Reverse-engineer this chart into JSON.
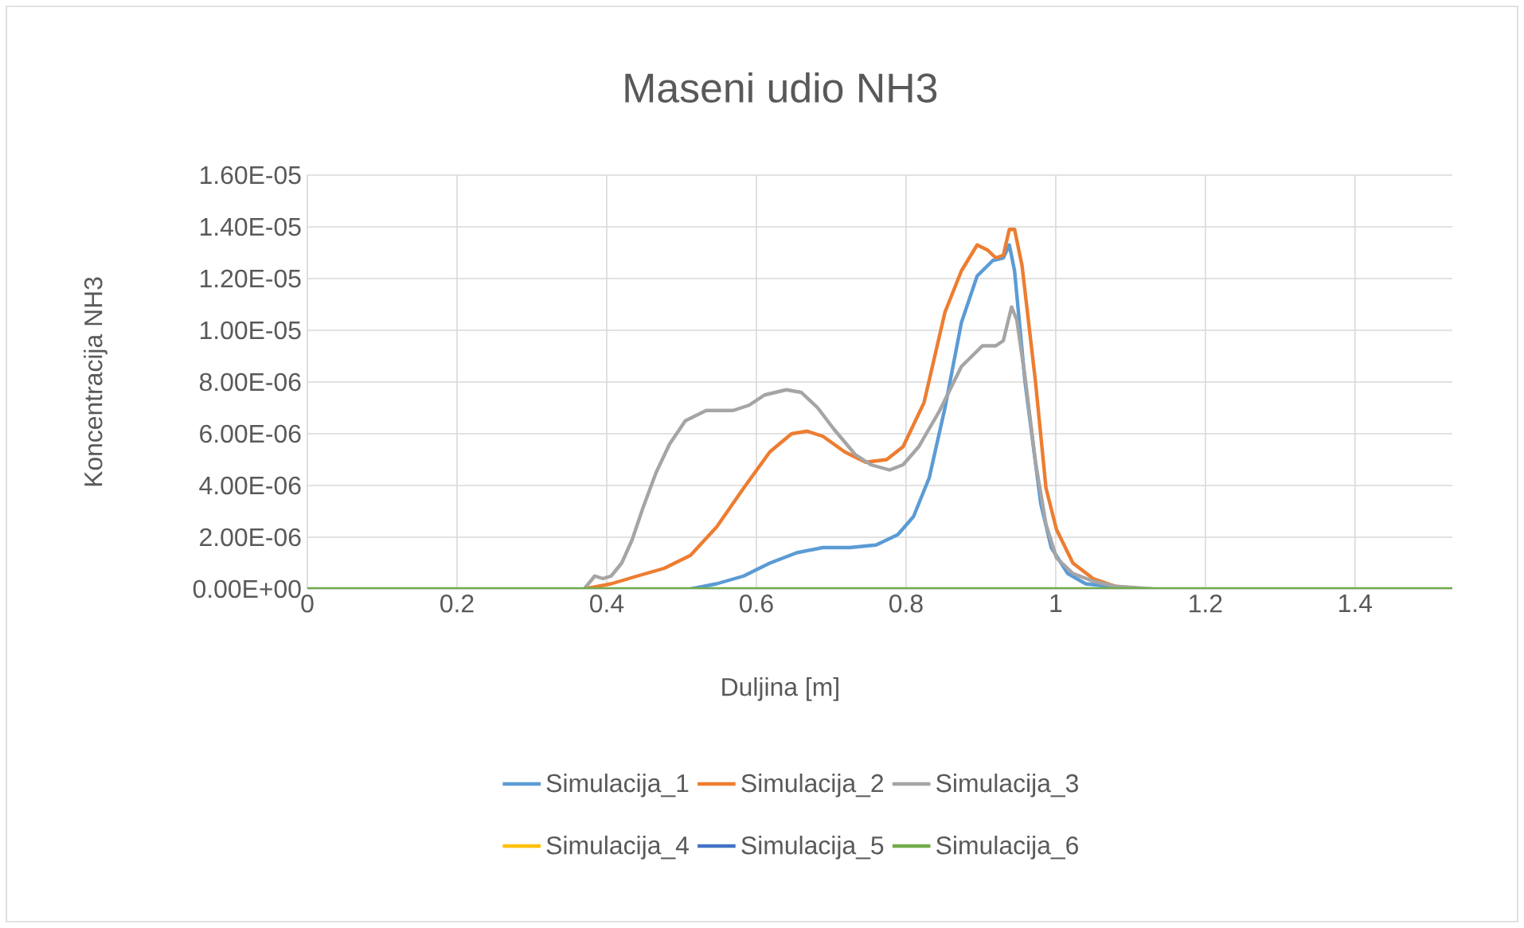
{
  "chart_data": {
    "type": "line",
    "title": "Maseni udio NH3",
    "xlabel": "Duljina [m]",
    "ylabel": "Koncentracija NH3",
    "xlim": [
      0,
      1.53
    ],
    "xticks": [
      0,
      0.2,
      0.4,
      0.6,
      0.8,
      1,
      1.2,
      1.4
    ],
    "ylim": [
      0,
      1.6e-05
    ],
    "yticks": [
      {
        "value": 0,
        "label": "0.00E+00"
      },
      {
        "value": 2e-06,
        "label": "2.00E-06"
      },
      {
        "value": 4e-06,
        "label": "4.00E-06"
      },
      {
        "value": 6e-06,
        "label": "6.00E-06"
      },
      {
        "value": 8e-06,
        "label": "8.00E-06"
      },
      {
        "value": 1e-05,
        "label": "1.00E-05"
      },
      {
        "value": 1.2e-05,
        "label": "1.20E-05"
      },
      {
        "value": 1.4e-05,
        "label": "1.40E-05"
      },
      {
        "value": 1.6e-05,
        "label": "1.60E-05"
      }
    ],
    "grid": true,
    "legend": "bottom",
    "marker": "none",
    "line_style": "solid",
    "series": [
      {
        "name": "Simulacija_1",
        "color": "#5b9bd5",
        "x": [
          0.512,
          0.547,
          0.583,
          0.618,
          0.654,
          0.689,
          0.725,
          0.76,
          0.789,
          0.81,
          0.831,
          0.852,
          0.874,
          0.895,
          0.916,
          0.93,
          0.938,
          0.945,
          0.959,
          0.98,
          0.994,
          1.016,
          1.04,
          1.07,
          1.1
        ],
        "values": [
          0,
          2e-07,
          5e-07,
          1e-06,
          1.4e-06,
          1.6e-06,
          1.6e-06,
          1.7e-06,
          2.1e-06,
          2.8e-06,
          4.3e-06,
          7e-06,
          1.03e-05,
          1.21e-05,
          1.27e-05,
          1.28e-05,
          1.33e-05,
          1.23e-05,
          8e-06,
          3.3e-06,
          1.6e-06,
          6e-07,
          2e-07,
          1e-07,
          0
        ]
      },
      {
        "name": "Simulacija_2",
        "color": "#ed7d31",
        "x": [
          0.37,
          0.406,
          0.441,
          0.477,
          0.512,
          0.547,
          0.583,
          0.618,
          0.647,
          0.668,
          0.689,
          0.718,
          0.746,
          0.774,
          0.796,
          0.824,
          0.852,
          0.874,
          0.895,
          0.909,
          0.92,
          0.93,
          0.938,
          0.945,
          0.955,
          0.973,
          0.987,
          1.001,
          1.023,
          1.05,
          1.08,
          1.12
        ],
        "values": [
          0,
          2e-07,
          5e-07,
          8e-07,
          1.3e-06,
          2.4e-06,
          3.9e-06,
          5.3e-06,
          6e-06,
          6.1e-06,
          5.9e-06,
          5.3e-06,
          4.9e-06,
          5e-06,
          5.5e-06,
          7.2e-06,
          1.07e-05,
          1.23e-05,
          1.33e-05,
          1.31e-05,
          1.28e-05,
          1.29e-05,
          1.39e-05,
          1.39e-05,
          1.25e-05,
          8e-06,
          3.9e-06,
          2.3e-06,
          1e-06,
          4e-07,
          1e-07,
          0
        ]
      },
      {
        "name": "Simulacija_3",
        "color": "#a5a5a5",
        "x": [
          0.37,
          0.384,
          0.395,
          0.406,
          0.42,
          0.434,
          0.448,
          0.466,
          0.484,
          0.505,
          0.533,
          0.569,
          0.59,
          0.611,
          0.64,
          0.66,
          0.682,
          0.703,
          0.732,
          0.753,
          0.778,
          0.796,
          0.817,
          0.845,
          0.874,
          0.902,
          0.92,
          0.93,
          0.941,
          0.948,
          0.959,
          0.973,
          0.987,
          1.001,
          1.023,
          1.05,
          1.08,
          1.13
        ],
        "values": [
          0,
          5e-07,
          4e-07,
          5e-07,
          1e-06,
          1.9e-06,
          3.1e-06,
          4.5e-06,
          5.6e-06,
          6.5e-06,
          6.9e-06,
          6.9e-06,
          7.1e-06,
          7.5e-06,
          7.7e-06,
          7.6e-06,
          7e-06,
          6.2e-06,
          5.2e-06,
          4.8e-06,
          4.6e-06,
          4.8e-06,
          5.5e-06,
          6.9e-06,
          8.6e-06,
          9.4e-06,
          9.4e-06,
          9.6e-06,
          1.09e-05,
          1.04e-05,
          8.2e-06,
          4.9e-06,
          2.5e-06,
          1.2e-06,
          6e-07,
          3e-07,
          1e-07,
          0
        ]
      },
      {
        "name": "Simulacija_4",
        "color": "#ffc000"
      },
      {
        "name": "Simulacija_5",
        "color": "#4472c4"
      },
      {
        "name": "Simulacija_6",
        "color": "#70ad47",
        "x": [
          0,
          1.53
        ],
        "values": [
          0,
          0
        ]
      }
    ]
  }
}
